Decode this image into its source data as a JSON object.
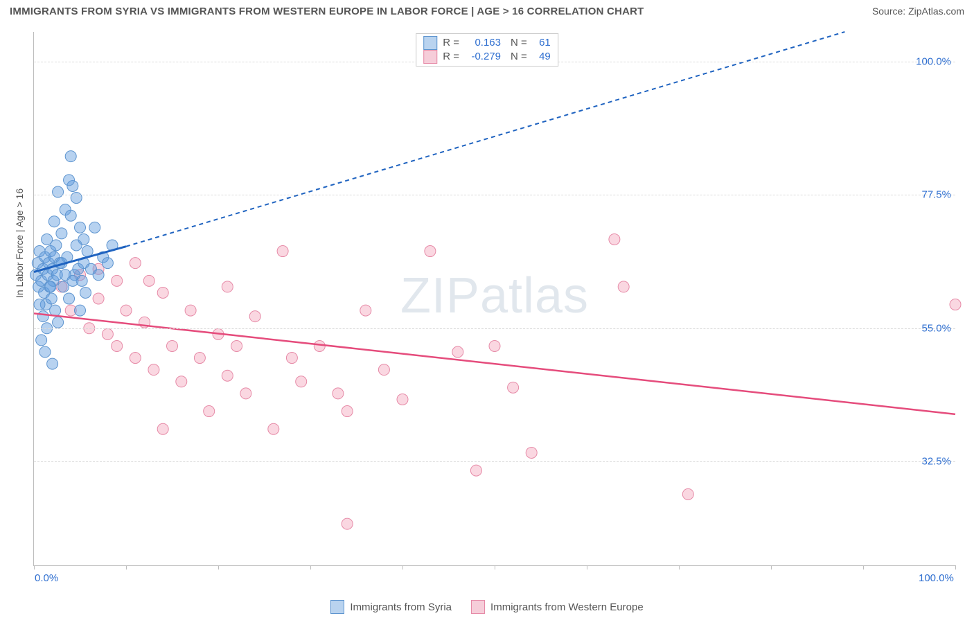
{
  "header": {
    "title": "IMMIGRANTS FROM SYRIA VS IMMIGRANTS FROM WESTERN EUROPE IN LABOR FORCE | AGE > 16 CORRELATION CHART",
    "source": "Source: ZipAtlas.com"
  },
  "ylabel": "In Labor Force | Age > 16",
  "watermark": "ZIPatlas",
  "axes": {
    "x_min": 0,
    "x_max": 100,
    "y_min": 15,
    "y_max": 105,
    "grid_color": "#d9d9d9",
    "axis_color": "#bdbdbd",
    "yticks": [
      {
        "v": 32.5,
        "label": "32.5%"
      },
      {
        "v": 55.0,
        "label": "55.0%"
      },
      {
        "v": 77.5,
        "label": "77.5%"
      },
      {
        "v": 100.0,
        "label": "100.0%"
      }
    ],
    "xticks_major": [
      0,
      100
    ],
    "xtick_labels": {
      "0": "0.0%",
      "100": "100.0%"
    },
    "xticks_minor": [
      10,
      20,
      30,
      40,
      50,
      60,
      70,
      80,
      90
    ]
  },
  "legend_stats": [
    {
      "series": "syria",
      "R": "0.163",
      "N": "61"
    },
    {
      "series": "weurope",
      "R": "-0.279",
      "N": "49"
    }
  ],
  "bottom_legend": [
    {
      "series": "syria",
      "label": "Immigrants from Syria"
    },
    {
      "series": "weurope",
      "label": "Immigrants from Western Europe"
    }
  ],
  "series": {
    "syria": {
      "label": "Immigrants from Syria",
      "marker_fill": "rgba(96,156,221,0.45)",
      "marker_stroke": "#5d94cf",
      "swatch_fill": "#b9d3ef",
      "swatch_border": "#5d94cf",
      "line_color": "#1f63c0",
      "line_dash": "6,5",
      "line_width": 2,
      "trend_solid": {
        "x1": 0,
        "y1": 64.5,
        "x2": 10,
        "y2": 68.8
      },
      "trend_dashed": {
        "x1": 10,
        "y1": 68.8,
        "x2": 88,
        "y2": 105
      },
      "points": [
        [
          0.2,
          64
        ],
        [
          0.4,
          66
        ],
        [
          0.5,
          62
        ],
        [
          0.6,
          68
        ],
        [
          0.8,
          63
        ],
        [
          1.0,
          65
        ],
        [
          1.1,
          61
        ],
        [
          1.2,
          67
        ],
        [
          1.3,
          59
        ],
        [
          1.4,
          70
        ],
        [
          1.5,
          64
        ],
        [
          1.6,
          66
        ],
        [
          1.7,
          62
        ],
        [
          1.8,
          68
        ],
        [
          1.9,
          60
        ],
        [
          2.0,
          65
        ],
        [
          2.1,
          63
        ],
        [
          2.2,
          67
        ],
        [
          2.3,
          58
        ],
        [
          2.4,
          69
        ],
        [
          2.5,
          64
        ],
        [
          2.6,
          56
        ],
        [
          2.8,
          66
        ],
        [
          3.0,
          71
        ],
        [
          3.2,
          62
        ],
        [
          3.4,
          75
        ],
        [
          3.6,
          67
        ],
        [
          3.8,
          60
        ],
        [
          4.0,
          74
        ],
        [
          4.2,
          79
        ],
        [
          4.4,
          64
        ],
        [
          4.6,
          77
        ],
        [
          4.8,
          65
        ],
        [
          5.0,
          72
        ],
        [
          5.2,
          63
        ],
        [
          5.4,
          70
        ],
        [
          5.6,
          61
        ],
        [
          1.0,
          57
        ],
        [
          1.4,
          55
        ],
        [
          0.8,
          53
        ],
        [
          2.2,
          73
        ],
        [
          2.6,
          78
        ],
        [
          3.0,
          66
        ],
        [
          3.4,
          64
        ],
        [
          3.8,
          80
        ],
        [
          4.2,
          63
        ],
        [
          4.6,
          69
        ],
        [
          5.0,
          58
        ],
        [
          5.4,
          66
        ],
        [
          5.8,
          68
        ],
        [
          6.2,
          65
        ],
        [
          6.6,
          72
        ],
        [
          7.0,
          64
        ],
        [
          7.5,
          67
        ],
        [
          8.0,
          66
        ],
        [
          8.5,
          69
        ],
        [
          4.0,
          84
        ],
        [
          2.0,
          49
        ],
        [
          1.2,
          51
        ],
        [
          0.6,
          59
        ],
        [
          1.8,
          62
        ]
      ]
    },
    "weurope": {
      "label": "Immigrants from Western Europe",
      "marker_fill": "rgba(240,140,170,0.35)",
      "marker_stroke": "#e68aa7",
      "swatch_fill": "#f6cdd9",
      "swatch_border": "#e68aa7",
      "line_color": "#e54c7c",
      "line_dash": "",
      "line_width": 2.5,
      "trend_solid": {
        "x1": 0,
        "y1": 57.5,
        "x2": 100,
        "y2": 40.5
      },
      "points": [
        [
          3,
          62
        ],
        [
          4,
          58
        ],
        [
          5,
          64
        ],
        [
          6,
          55
        ],
        [
          7,
          60
        ],
        [
          8,
          54
        ],
        [
          9,
          52
        ],
        [
          10,
          58
        ],
        [
          11,
          50
        ],
        [
          12,
          56
        ],
        [
          12.5,
          63
        ],
        [
          13,
          48
        ],
        [
          14,
          61
        ],
        [
          15,
          52
        ],
        [
          16,
          46
        ],
        [
          17,
          58
        ],
        [
          18,
          50
        ],
        [
          19,
          41
        ],
        [
          20,
          54
        ],
        [
          21,
          47
        ],
        [
          22,
          52
        ],
        [
          23,
          44
        ],
        [
          24,
          57
        ],
        [
          26,
          38
        ],
        [
          27,
          68
        ],
        [
          28,
          50
        ],
        [
          29,
          46
        ],
        [
          31,
          52
        ],
        [
          33,
          44
        ],
        [
          34,
          22
        ],
        [
          34,
          41
        ],
        [
          36,
          58
        ],
        [
          38,
          48
        ],
        [
          40,
          43
        ],
        [
          43,
          68
        ],
        [
          46,
          51
        ],
        [
          48,
          31
        ],
        [
          50,
          52
        ],
        [
          52,
          45
        ],
        [
          54,
          34
        ],
        [
          63,
          70
        ],
        [
          64,
          62
        ],
        [
          71,
          27
        ],
        [
          100,
          59
        ],
        [
          7,
          65
        ],
        [
          9,
          63
        ],
        [
          11,
          66
        ],
        [
          14,
          38
        ],
        [
          21,
          62
        ]
      ]
    }
  },
  "style": {
    "marker_radius": 8,
    "background": "#ffffff",
    "label_color": "#2f6fd0",
    "text_color": "#555555"
  }
}
